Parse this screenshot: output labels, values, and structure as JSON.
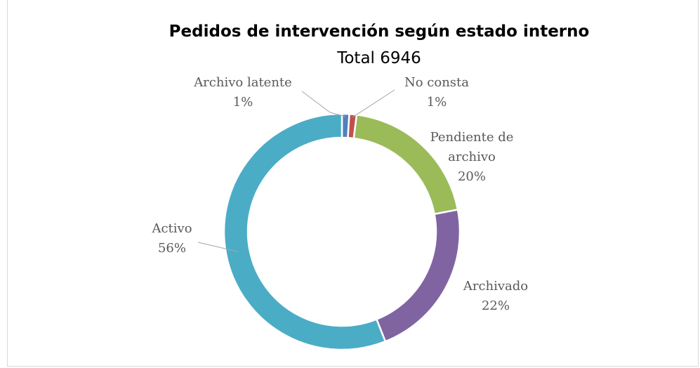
{
  "chart_data": {
    "type": "donut",
    "title": "Pedidos de intervención según estado interno",
    "subtitle": "Total 6946",
    "categories": [
      "Archivo latente",
      "No consta",
      "Pendiente de archivo",
      "Archivado",
      "Activo"
    ],
    "values": [
      1,
      1,
      20,
      22,
      56
    ],
    "value_labels": [
      "1%",
      "1%",
      "20%",
      "22%",
      "56%"
    ],
    "colors": [
      "#4f81bd",
      "#c0504d",
      "#9bbb59",
      "#8064a2",
      "#4bacc6"
    ]
  }
}
